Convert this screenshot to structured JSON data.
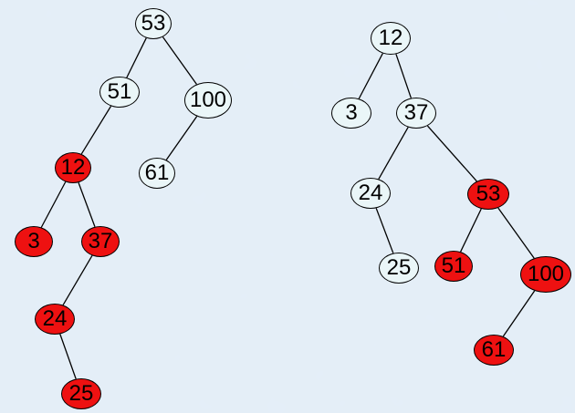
{
  "colors": {
    "background": "#d8e6f2",
    "light_node": "#eaf6f8",
    "red_node": "#ee1111",
    "edge": "#000000"
  },
  "trees": [
    {
      "nodes": [
        {
          "id": "a53",
          "label": "53",
          "fill": "light"
        },
        {
          "id": "a51",
          "label": "51",
          "fill": "light"
        },
        {
          "id": "a100",
          "label": "100",
          "fill": "light"
        },
        {
          "id": "a12",
          "label": "12",
          "fill": "red"
        },
        {
          "id": "a61",
          "label": "61",
          "fill": "light"
        },
        {
          "id": "a3",
          "label": "3",
          "fill": "red"
        },
        {
          "id": "a37",
          "label": "37",
          "fill": "red"
        },
        {
          "id": "a24",
          "label": "24",
          "fill": "red"
        },
        {
          "id": "a25",
          "label": "25",
          "fill": "red"
        }
      ],
      "edges": [
        [
          "a53",
          "a51"
        ],
        [
          "a53",
          "a100"
        ],
        [
          "a51",
          "a12"
        ],
        [
          "a100",
          "a61"
        ],
        [
          "a12",
          "a3"
        ],
        [
          "a12",
          "a37"
        ],
        [
          "a37",
          "a24"
        ],
        [
          "a24",
          "a25"
        ]
      ]
    },
    {
      "nodes": [
        {
          "id": "b12",
          "label": "12",
          "fill": "light"
        },
        {
          "id": "b3",
          "label": "3",
          "fill": "light"
        },
        {
          "id": "b37",
          "label": "37",
          "fill": "light"
        },
        {
          "id": "b24",
          "label": "24",
          "fill": "light"
        },
        {
          "id": "b53",
          "label": "53",
          "fill": "red"
        },
        {
          "id": "b25",
          "label": "25",
          "fill": "light"
        },
        {
          "id": "b51",
          "label": "51",
          "fill": "red"
        },
        {
          "id": "b100",
          "label": "100",
          "fill": "red"
        },
        {
          "id": "b61",
          "label": "61",
          "fill": "red"
        }
      ],
      "edges": [
        [
          "b12",
          "b3"
        ],
        [
          "b12",
          "b37"
        ],
        [
          "b37",
          "b24"
        ],
        [
          "b37",
          "b53"
        ],
        [
          "b24",
          "b25"
        ],
        [
          "b53",
          "b51"
        ],
        [
          "b53",
          "b100"
        ],
        [
          "b100",
          "b61"
        ]
      ]
    }
  ]
}
